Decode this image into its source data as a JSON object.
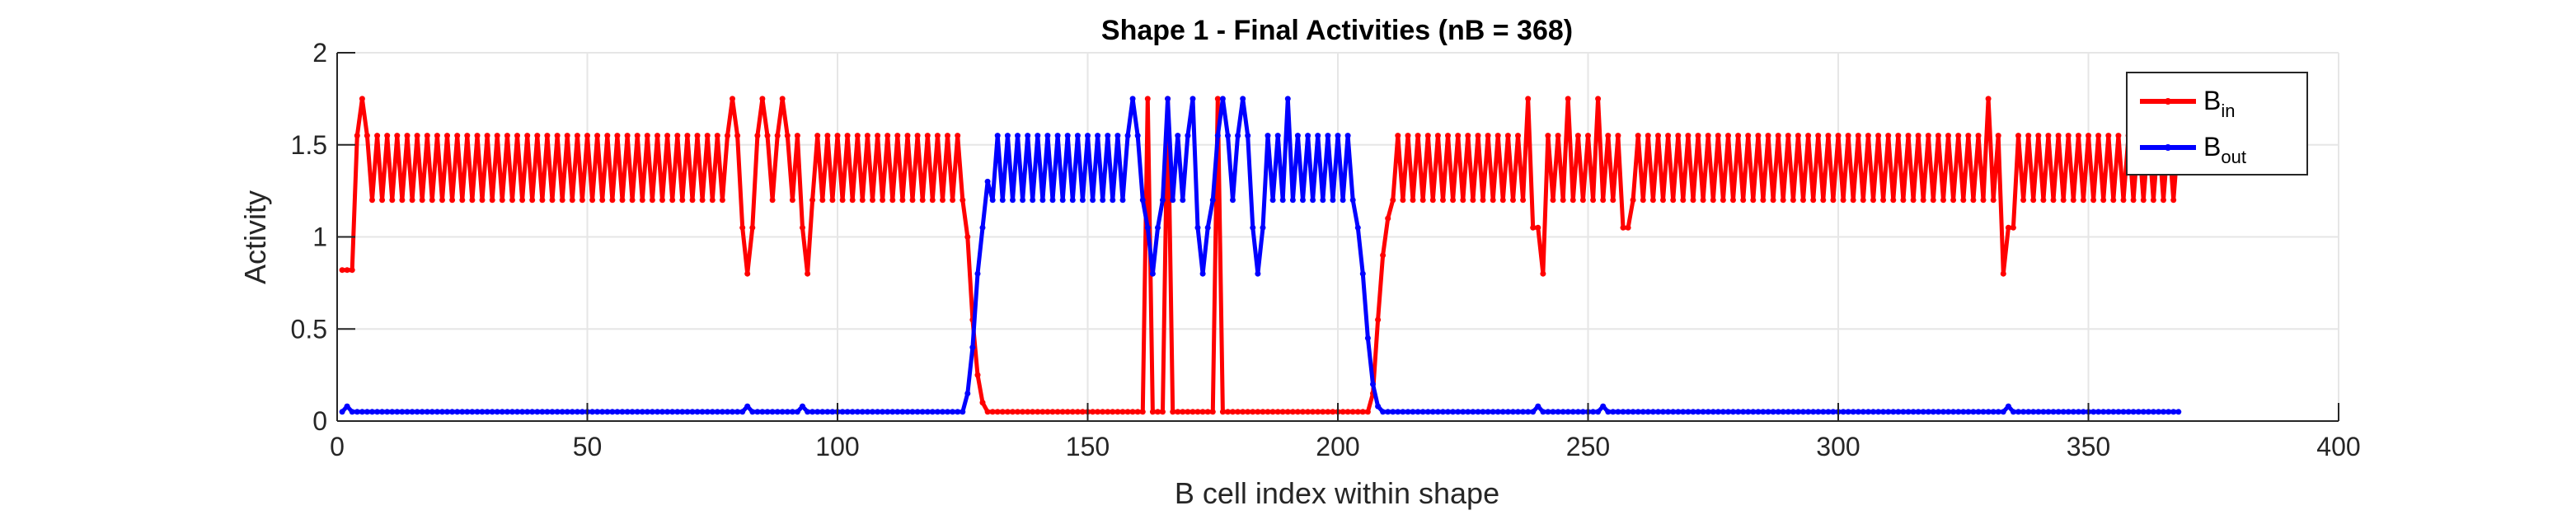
{
  "chart_data": {
    "type": "line",
    "title": "Shape 1 - Final Activities (nB = 368)",
    "xlabel": "B cell index within shape",
    "ylabel": "Activity",
    "xlim": [
      0,
      400
    ],
    "ylim": [
      0,
      2
    ],
    "xticks": [
      "0",
      "50",
      "100",
      "150",
      "200",
      "250",
      "300",
      "350",
      "400"
    ],
    "yticks": [
      "0",
      "0.5",
      "1",
      "1.5",
      "2"
    ],
    "grid": true,
    "legend_position": "top-right",
    "colors": {
      "B_in": "#ff0000",
      "B_out": "#0000ff"
    },
    "series": [
      {
        "name": "B_in",
        "legend_base": "B",
        "legend_sub": "in",
        "color": "#ff0000",
        "description": "Alternating high activity (~1.55 / ~1.2) at indices 1-125 and 210-368 with dips to ~0.8 near 82, 93, 240, 258, 334; drops to ~0.05 between 128 and 207",
        "segments": [
          {
            "range": [
              1,
              3
            ],
            "values": [
              0.82,
              0.82,
              0.82
            ]
          },
          {
            "range": [
              4,
              80
            ],
            "pattern": "alternating",
            "high": 1.55,
            "low": 1.2
          },
          {
            "range": [
              81,
              125
            ],
            "pattern": "alternating",
            "high": 1.55,
            "low": 1.2
          },
          {
            "range": [
              126,
              129
            ],
            "values": [
              1.0,
              0.55,
              0.25,
              0.1
            ]
          },
          {
            "range": [
              130,
              206
            ],
            "value": 0.05
          },
          {
            "range": [
              207,
              210
            ],
            "values": [
              0.15,
              0.55,
              0.9,
              1.1
            ]
          },
          {
            "range": [
              211,
              368
            ],
            "pattern": "alternating",
            "high": 1.55,
            "low": 1.2
          }
        ],
        "dips": [
          81,
          82,
          83,
          93,
          94,
          239,
          240,
          241,
          257,
          258,
          333,
          334,
          335
        ],
        "peaks": [
          5,
          79,
          85,
          89,
          162,
          166,
          176,
          238,
          246,
          252,
          330
        ]
      },
      {
        "name": "B_out",
        "legend_base": "B",
        "legend_sub": "out",
        "color": "#0000ff",
        "description": "Low activity (~0.05) except between indices 128 and 207 where it alternates ~1.55 / ~1.2 with dips to ~0.8 near 163, 172, 185",
        "segments": [
          {
            "range": [
              1,
              125
            ],
            "value": 0.05
          },
          {
            "range": [
              126,
              130
            ],
            "values": [
              0.15,
              0.4,
              0.8,
              1.05,
              1.3
            ]
          },
          {
            "range": [
              131,
              203
            ],
            "pattern": "alternating",
            "high": 1.55,
            "low": 1.2
          },
          {
            "range": [
              204,
              208
            ],
            "values": [
              1.05,
              0.8,
              0.45,
              0.2,
              0.08
            ]
          },
          {
            "range": [
              209,
              368
            ],
            "value": 0.05
          }
        ],
        "dips": [
          162,
          163,
          164,
          172,
          173,
          174,
          183,
          184,
          185
        ],
        "peaks": [
          159,
          166,
          171,
          177,
          181,
          190
        ],
        "bumps": [
          2,
          82,
          93,
          240,
          253,
          334
        ]
      }
    ]
  }
}
